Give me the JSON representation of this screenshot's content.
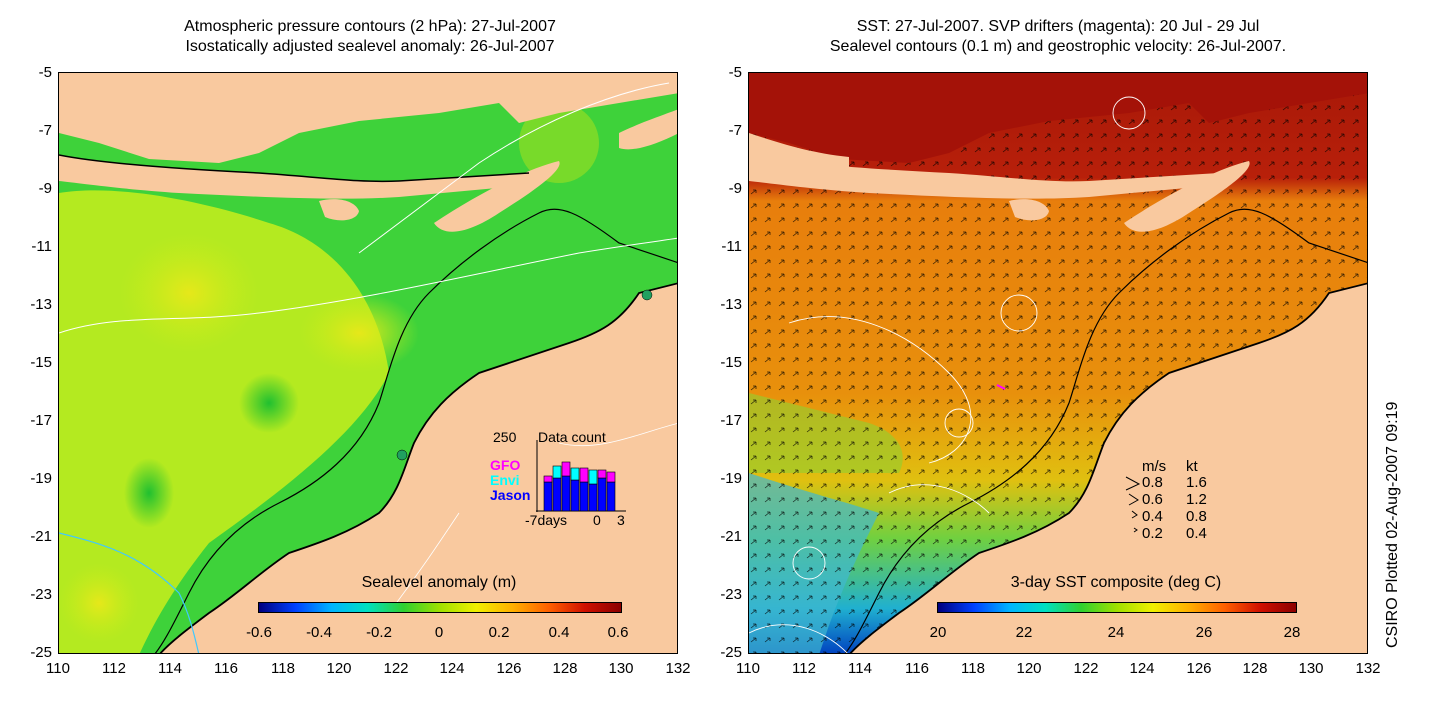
{
  "left_panel": {
    "title_line1": "Atmospheric pressure contours (2 hPa): 27-Jul-2007",
    "title_line2": "Isostatically adjusted sealevel anomaly: 26-Jul-2007",
    "colorbar_title": "Sealevel anomaly (m)",
    "colorbar_ticks": [
      "-0.6",
      "-0.4",
      "-0.2",
      "0",
      "0.2",
      "0.4",
      "0.6"
    ],
    "data_count": {
      "max_label": "250",
      "title": "Data count",
      "x_labels": [
        "-7days",
        "0",
        "3"
      ],
      "series": [
        {
          "name": "GFO",
          "color": "#ff00ff"
        },
        {
          "name": "Envi",
          "color": "#00ffff"
        },
        {
          "name": "Jason",
          "color": "#0000ff"
        }
      ]
    }
  },
  "right_panel": {
    "title_line1": "SST: 27-Jul-2007. SVP drifters (magenta): 20 Jul - 29 Jul",
    "title_line2": "Sealevel contours (0.1 m) and geostrophic velocity: 26-Jul-2007.",
    "colorbar_title": "3-day SST composite (deg C)",
    "colorbar_ticks": [
      "20",
      "22",
      "24",
      "26",
      "28"
    ],
    "velocity_legend": {
      "header_ms": "m/s",
      "header_kt": "kt",
      "rows": [
        {
          "ms": "0.8",
          "kt": "1.6"
        },
        {
          "ms": "0.6",
          "kt": "1.2"
        },
        {
          "ms": "0.4",
          "kt": "0.8"
        },
        {
          "ms": "0.2",
          "kt": "0.4"
        }
      ]
    }
  },
  "axes": {
    "y_ticks": [
      "-5",
      "-7",
      "-9",
      "-11",
      "-13",
      "-15",
      "-17",
      "-19",
      "-21",
      "-23",
      "-25"
    ],
    "x_ticks": [
      "110",
      "112",
      "114",
      "116",
      "118",
      "120",
      "122",
      "124",
      "126",
      "128",
      "130",
      "132"
    ]
  },
  "credit": "CSIRO Plotted 02-Aug-2007 09:19",
  "colors": {
    "land": "#f9c99f",
    "ocean_green": "#39d039",
    "ocean_yellow": "#c8ee1a",
    "sst_warm": "#e8900c",
    "sst_hot": "#a81808"
  }
}
